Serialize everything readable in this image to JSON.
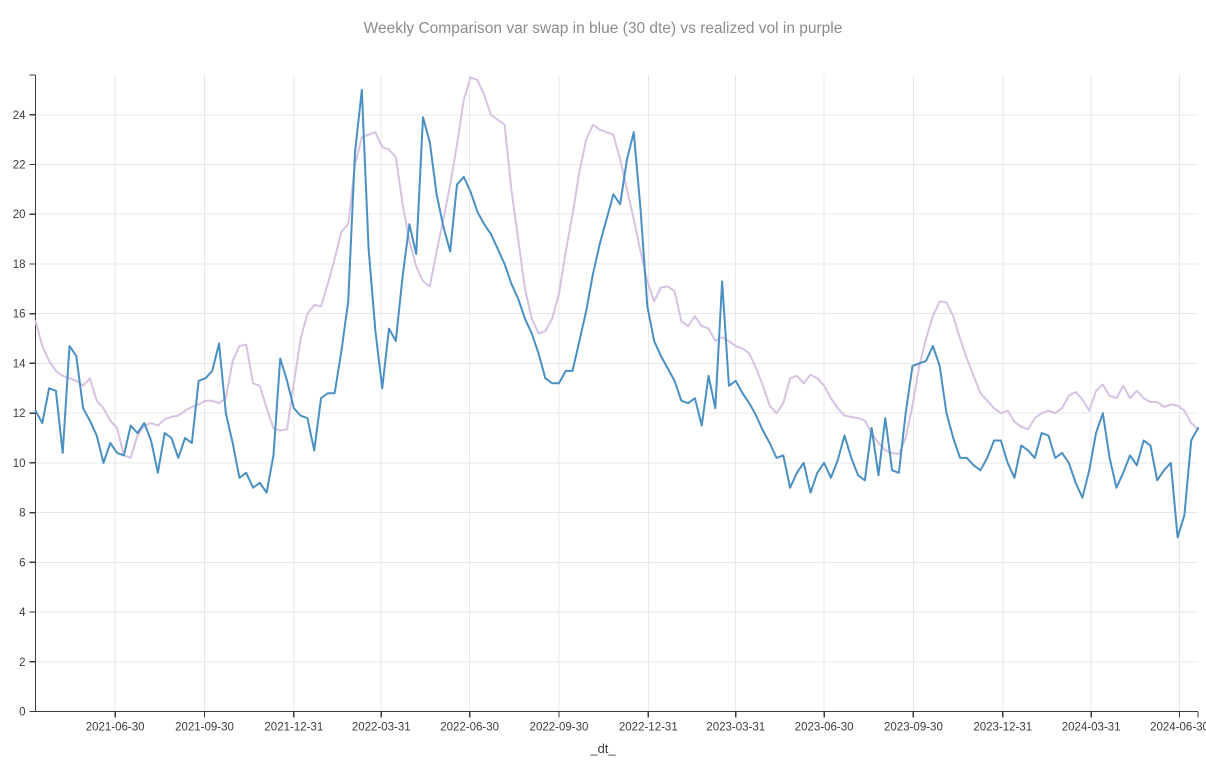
{
  "chart_data": {
    "type": "line",
    "title": "Weekly Comparison var swap in blue (30 dte) vs realized vol in purple",
    "xlabel": "_dt_",
    "ylabel": "",
    "x_start_date": "2021-04-09",
    "x_step_days": 7,
    "x_tick_labels": [
      "2021-06-30",
      "2021-09-30",
      "2021-12-31",
      "2022-03-31",
      "2022-06-30",
      "2022-09-30",
      "2022-12-31",
      "2023-03-31",
      "2023-06-30",
      "2023-09-30",
      "2023-12-31",
      "2024-03-31",
      "2024-06-30"
    ],
    "yticks": [
      0,
      2,
      4,
      6,
      8,
      10,
      12,
      14,
      16,
      18,
      20,
      22,
      24
    ],
    "ylim": [
      0,
      25.6
    ],
    "grid": true,
    "legend_position": "none",
    "series": [
      {
        "name": "realized vol",
        "color": "#d8c2e4",
        "values": [
          15.7,
          14.7,
          14.1,
          13.7,
          13.5,
          13.4,
          13.3,
          13.1,
          13.4,
          12.5,
          12.2,
          11.7,
          11.4,
          10.3,
          10.2,
          11.1,
          11.5,
          11.6,
          11.5,
          11.75,
          11.85,
          11.9,
          12.1,
          12.25,
          12.35,
          12.5,
          12.5,
          12.4,
          12.6,
          14.1,
          14.7,
          14.75,
          13.2,
          13.1,
          12.2,
          11.4,
          11.3,
          11.35,
          13.2,
          15.0,
          16.0,
          16.35,
          16.3,
          17.2,
          18.2,
          19.3,
          19.6,
          22.0,
          23.1,
          23.2,
          23.3,
          22.7,
          22.6,
          22.3,
          20.4,
          18.9,
          17.9,
          17.3,
          17.1,
          18.5,
          19.8,
          21.2,
          22.8,
          24.6,
          25.5,
          25.4,
          24.8,
          24.0,
          23.8,
          23.6,
          21.0,
          19.0,
          17.0,
          15.8,
          15.2,
          15.3,
          15.8,
          16.8,
          18.5,
          20.0,
          21.7,
          23.0,
          23.6,
          23.4,
          23.3,
          23.2,
          22.2,
          21.0,
          19.8,
          18.5,
          17.3,
          16.5,
          17.05,
          17.1,
          16.9,
          15.7,
          15.5,
          15.9,
          15.5,
          15.4,
          14.9,
          15.05,
          14.9,
          14.7,
          14.6,
          14.4,
          13.8,
          13.1,
          12.3,
          12.0,
          12.4,
          13.4,
          13.5,
          13.2,
          13.55,
          13.4,
          13.1,
          12.6,
          12.2,
          11.9,
          11.85,
          11.8,
          11.7,
          11.2,
          10.8,
          10.5,
          10.4,
          10.35,
          11.0,
          12.3,
          13.9,
          15.0,
          15.9,
          16.5,
          16.45,
          15.9,
          15.0,
          14.2,
          13.5,
          12.8,
          12.5,
          12.2,
          12.0,
          12.1,
          11.65,
          11.45,
          11.35,
          11.8,
          12.0,
          12.1,
          12.0,
          12.2,
          12.7,
          12.85,
          12.55,
          12.1,
          12.9,
          13.15,
          12.7,
          12.6,
          13.1,
          12.6,
          12.9,
          12.6,
          12.45,
          12.45,
          12.25,
          12.35,
          12.3,
          12.1,
          11.6,
          11.35
        ]
      },
      {
        "name": "var swap (30 dte)",
        "color": "#4a90c2",
        "values": [
          12.1,
          11.6,
          13.0,
          12.9,
          10.4,
          14.7,
          14.3,
          12.2,
          11.7,
          11.1,
          10.0,
          10.8,
          10.4,
          10.3,
          11.5,
          11.2,
          11.6,
          10.9,
          9.6,
          11.2,
          11.0,
          10.2,
          11.0,
          10.8,
          13.3,
          13.4,
          13.7,
          14.8,
          12.0,
          10.8,
          9.4,
          9.6,
          9.0,
          9.2,
          8.8,
          10.3,
          14.2,
          13.3,
          12.2,
          11.9,
          11.8,
          10.5,
          12.6,
          12.8,
          12.8,
          14.5,
          16.5,
          22.5,
          25.0,
          18.6,
          15.3,
          13.0,
          15.4,
          14.9,
          17.5,
          19.6,
          18.4,
          23.9,
          22.9,
          20.8,
          19.5,
          18.5,
          21.2,
          21.5,
          20.9,
          20.1,
          19.6,
          19.2,
          18.6,
          18.0,
          17.2,
          16.6,
          15.8,
          15.2,
          14.4,
          13.4,
          13.2,
          13.2,
          13.7,
          13.7,
          14.9,
          16.1,
          17.6,
          18.8,
          19.8,
          20.8,
          20.4,
          22.2,
          23.3,
          20.2,
          16.3,
          14.9,
          14.3,
          13.8,
          13.3,
          12.5,
          12.4,
          12.6,
          11.5,
          13.5,
          12.2,
          17.3,
          13.1,
          13.3,
          12.8,
          12.4,
          11.9,
          11.3,
          10.8,
          10.2,
          10.3,
          9.0,
          9.6,
          10.0,
          8.8,
          9.6,
          10.0,
          9.4,
          10.1,
          11.1,
          10.2,
          9.5,
          9.3,
          11.4,
          9.5,
          11.8,
          9.7,
          9.6,
          12.0,
          13.9,
          14.0,
          14.1,
          14.7,
          13.9,
          12.0,
          11.0,
          10.2,
          10.2,
          9.9,
          9.7,
          10.2,
          10.9,
          10.9,
          10.0,
          9.4,
          10.7,
          10.5,
          10.2,
          11.2,
          11.1,
          10.2,
          10.4,
          10.0,
          9.2,
          8.6,
          9.7,
          11.2,
          12.0,
          10.2,
          9.0,
          9.6,
          10.3,
          9.9,
          10.9,
          10.7,
          9.3,
          9.7,
          10.0,
          7.0,
          7.9,
          10.9,
          11.4
        ]
      }
    ],
    "colors": {
      "background": "#ffffff",
      "gridline": "#e8e8e8",
      "axis": "#3c3c3c",
      "tick_label": "#3c3c3c",
      "title": "#8c8c8c",
      "var_swap_line": "#4a90c2",
      "realized_vol_line": "#d8c2e4"
    }
  }
}
